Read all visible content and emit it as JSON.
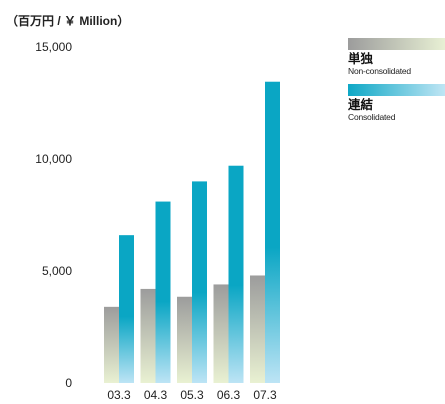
{
  "chart_data": {
    "type": "bar",
    "title": "",
    "unit_label": "（百万円 / ￥ Million）",
    "categories": [
      "03.3",
      "04.3",
      "05.3",
      "06.3",
      "07.3"
    ],
    "series": [
      {
        "name": "単独",
        "sub_label": "Non-consolidated",
        "values": [
          3400,
          4200,
          3850,
          4400,
          4800
        ]
      },
      {
        "name": "連結",
        "sub_label": "Consolidated",
        "values": [
          6600,
          8100,
          9000,
          9700,
          13450
        ]
      }
    ],
    "y_ticks": [
      "0",
      "5,000",
      "10,000",
      "15,000"
    ],
    "ylim": [
      0,
      15000
    ],
    "legend_position": "top-right",
    "colors": {
      "nonconsolidated_top": "#9c9c9c",
      "nonconsolidated_bottom": "#e9f1d2",
      "consolidated_top": "#0aa6c4",
      "consolidated_bottom": "#bde4f5"
    }
  }
}
